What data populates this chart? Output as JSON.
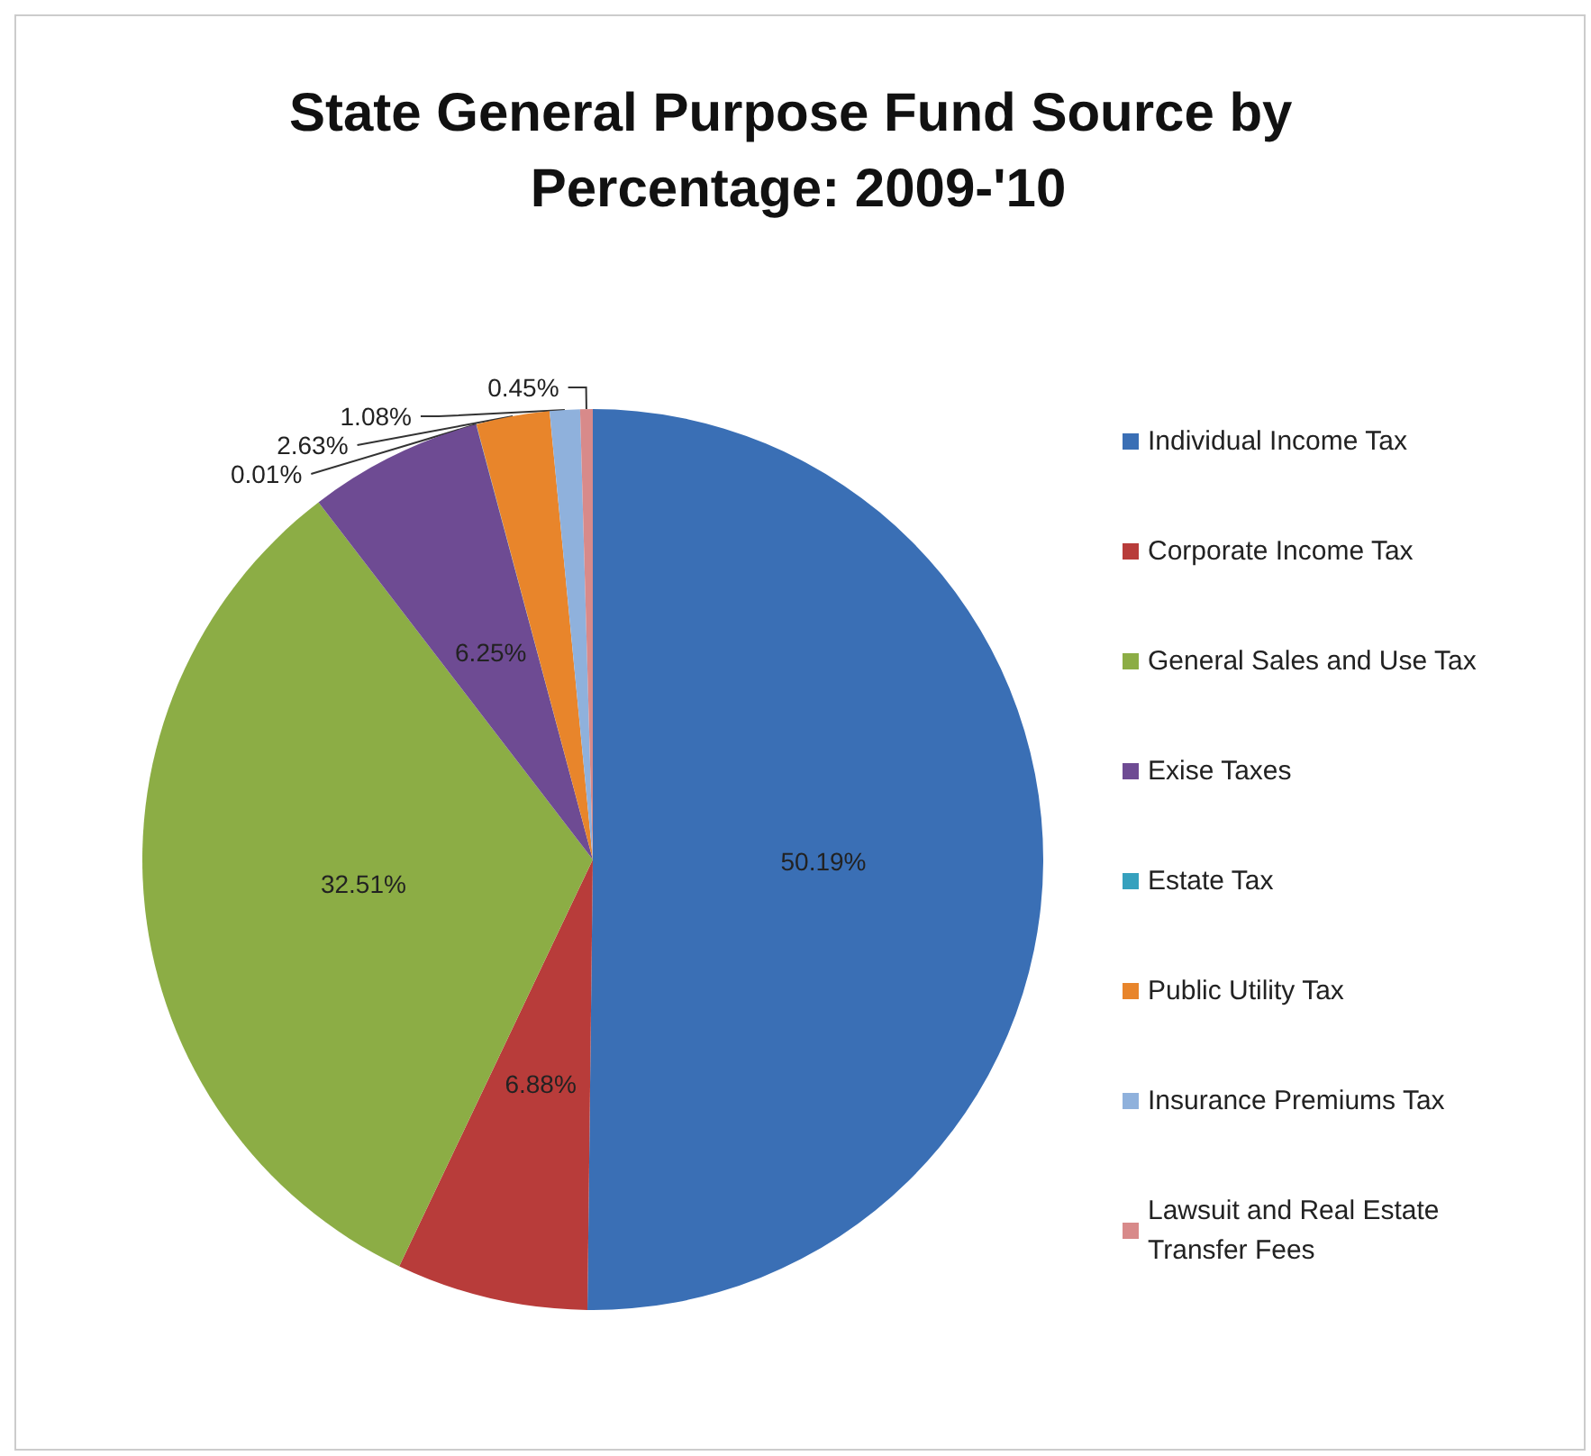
{
  "chart_data": {
    "type": "pie",
    "title": "State General Purpose Fund Source by Percentage: 2009-'10",
    "categories": [
      "Individual Income Tax",
      "Corporate Income Tax",
      "General Sales and Use Tax",
      "Exise Taxes",
      "Estate Tax",
      "Public Utility Tax",
      "Insurance Premiums Tax",
      "Lawsuit and Real Estate Transfer Fees"
    ],
    "values": [
      50.19,
      6.88,
      32.51,
      6.25,
      0.01,
      2.63,
      1.08,
      0.45
    ],
    "colors": [
      "#3a6fb5",
      "#b83c3a",
      "#8cad45",
      "#6e4b93",
      "#36a1be",
      "#e8852b",
      "#8fb1dc",
      "#d88a8a"
    ],
    "value_labels": [
      "50.19%",
      "6.88%",
      "32.51%",
      "6.25%",
      "0.01%",
      "2.63%",
      "1.08%",
      "0.45%"
    ],
    "legend": "right"
  }
}
